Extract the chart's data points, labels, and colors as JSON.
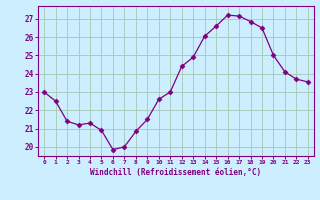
{
  "x": [
    0,
    1,
    2,
    3,
    4,
    5,
    6,
    7,
    8,
    9,
    10,
    11,
    12,
    13,
    14,
    15,
    16,
    17,
    18,
    19,
    20,
    21,
    22,
    23
  ],
  "y": [
    23.0,
    22.5,
    21.4,
    21.2,
    21.3,
    20.9,
    19.85,
    20.0,
    20.85,
    21.5,
    22.6,
    23.0,
    24.4,
    24.9,
    26.05,
    26.6,
    27.2,
    27.15,
    26.85,
    26.5,
    25.0,
    24.1,
    23.7,
    23.55
  ],
  "line_color": "#800080",
  "marker": "D",
  "marker_size": 2.5,
  "bg_color": "#cceeff",
  "grid_color": "#aaccbb",
  "xlabel": "Windchill (Refroidissement éolien,°C)",
  "ylabel_ticks": [
    20,
    21,
    22,
    23,
    24,
    25,
    26,
    27
  ],
  "ylim": [
    19.5,
    27.7
  ],
  "xlim": [
    -0.5,
    23.5
  ],
  "tick_label_color": "#800080",
  "xlabel_color": "#800080",
  "font_family": "monospace"
}
